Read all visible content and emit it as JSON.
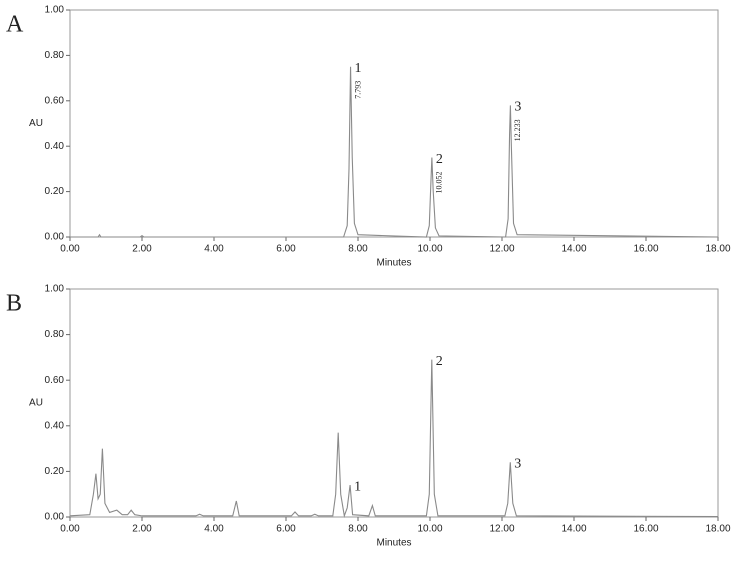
{
  "chart_data": [
    {
      "type": "line",
      "panel_label": "A",
      "xlabel": "Minutes",
      "ylabel": "AU",
      "color": "#8a8a8a",
      "x": [
        0,
        0.78,
        0.82,
        0.86,
        1.95,
        2.0,
        2.05,
        7.6,
        7.7,
        7.75,
        7.793,
        7.84,
        7.9,
        8.0,
        9.9,
        9.98,
        10.02,
        10.052,
        10.09,
        10.15,
        10.25,
        12.1,
        12.17,
        12.21,
        12.233,
        12.26,
        12.32,
        12.42,
        18
      ],
      "values": [
        0,
        0,
        0.01,
        0,
        0,
        0.006,
        0,
        0,
        0.05,
        0.3,
        0.75,
        0.35,
        0.06,
        0.01,
        0,
        0.05,
        0.22,
        0.35,
        0.2,
        0.04,
        0.005,
        0,
        0.08,
        0.45,
        0.58,
        0.4,
        0.06,
        0.01,
        0
      ],
      "peaks": [
        {
          "label": "1",
          "time": "7.793",
          "x": 7.793,
          "y": 0.75
        },
        {
          "label": "2",
          "time": "10.052",
          "x": 10.052,
          "y": 0.35
        },
        {
          "label": "3",
          "time": "12.233",
          "x": 12.233,
          "y": 0.58
        }
      ],
      "xlim": [
        0,
        18
      ],
      "ylim": [
        0,
        1
      ],
      "xticks": [
        {
          "value": 0,
          "label": "0.00"
        },
        {
          "value": 2,
          "label": "2.00"
        },
        {
          "value": 4,
          "label": "4.00"
        },
        {
          "value": 6,
          "label": "6.00"
        },
        {
          "value": 8,
          "label": "8.00"
        },
        {
          "value": 10,
          "label": "10.00"
        },
        {
          "value": 12,
          "label": "12.00"
        },
        {
          "value": 14,
          "label": "14.00"
        },
        {
          "value": 16,
          "label": "16.00"
        },
        {
          "value": 18,
          "label": "18.00"
        }
      ],
      "yticks": [
        {
          "value": 0,
          "label": "0.00"
        },
        {
          "value": 0.2,
          "label": "0.20"
        },
        {
          "value": 0.4,
          "label": "0.40"
        },
        {
          "value": 0.6,
          "label": "0.60"
        },
        {
          "value": 0.8,
          "label": "0.80"
        },
        {
          "value": 1,
          "label": "1.00"
        }
      ]
    },
    {
      "type": "line",
      "panel_label": "B",
      "xlabel": "Minutes",
      "ylabel": "AU",
      "color": "#8a8a8a",
      "x": [
        0,
        0.55,
        0.65,
        0.72,
        0.78,
        0.84,
        0.9,
        0.97,
        1.1,
        1.3,
        1.45,
        1.6,
        1.7,
        1.8,
        2.0,
        3.5,
        3.6,
        3.7,
        4.52,
        4.62,
        4.7,
        6.15,
        6.25,
        6.35,
        6.7,
        6.8,
        6.9,
        7.3,
        7.38,
        7.45,
        7.52,
        7.62,
        7.7,
        7.78,
        7.85,
        8.3,
        8.4,
        8.48,
        9.9,
        9.98,
        10.05,
        10.12,
        10.22,
        12.08,
        12.16,
        12.23,
        12.3,
        12.4,
        18
      ],
      "values": [
        0.005,
        0.01,
        0.1,
        0.19,
        0.08,
        0.1,
        0.3,
        0.06,
        0.02,
        0.03,
        0.01,
        0.01,
        0.03,
        0.01,
        0.005,
        0.005,
        0.012,
        0.005,
        0.005,
        0.07,
        0.005,
        0.005,
        0.022,
        0.005,
        0.005,
        0.012,
        0.005,
        0.005,
        0.1,
        0.37,
        0.1,
        0.005,
        0.04,
        0.14,
        0.01,
        0.005,
        0.05,
        0.005,
        0.005,
        0.1,
        0.69,
        0.1,
        0.005,
        0.005,
        0.06,
        0.24,
        0.06,
        0.005,
        0.002
      ],
      "peaks": [
        {
          "label": "1",
          "x": 7.78,
          "y": 0.14
        },
        {
          "label": "2",
          "x": 10.05,
          "y": 0.69
        },
        {
          "label": "3",
          "x": 12.23,
          "y": 0.24
        }
      ],
      "xlim": [
        0,
        18
      ],
      "ylim": [
        0,
        1
      ],
      "xticks": [
        {
          "value": 0,
          "label": "0.00"
        },
        {
          "value": 2,
          "label": "2.00"
        },
        {
          "value": 4,
          "label": "4.00"
        },
        {
          "value": 6,
          "label": "6.00"
        },
        {
          "value": 8,
          "label": "8.00"
        },
        {
          "value": 10,
          "label": "10.00"
        },
        {
          "value": 12,
          "label": "12.00"
        },
        {
          "value": 14,
          "label": "14.00"
        },
        {
          "value": 16,
          "label": "16.00"
        },
        {
          "value": 18,
          "label": "18.00"
        }
      ],
      "yticks": [
        {
          "value": 0,
          "label": "0.00"
        },
        {
          "value": 0.2,
          "label": "0.20"
        },
        {
          "value": 0.4,
          "label": "0.40"
        },
        {
          "value": 0.6,
          "label": "0.60"
        },
        {
          "value": 0.8,
          "label": "0.80"
        },
        {
          "value": 1,
          "label": "1.00"
        }
      ]
    }
  ]
}
